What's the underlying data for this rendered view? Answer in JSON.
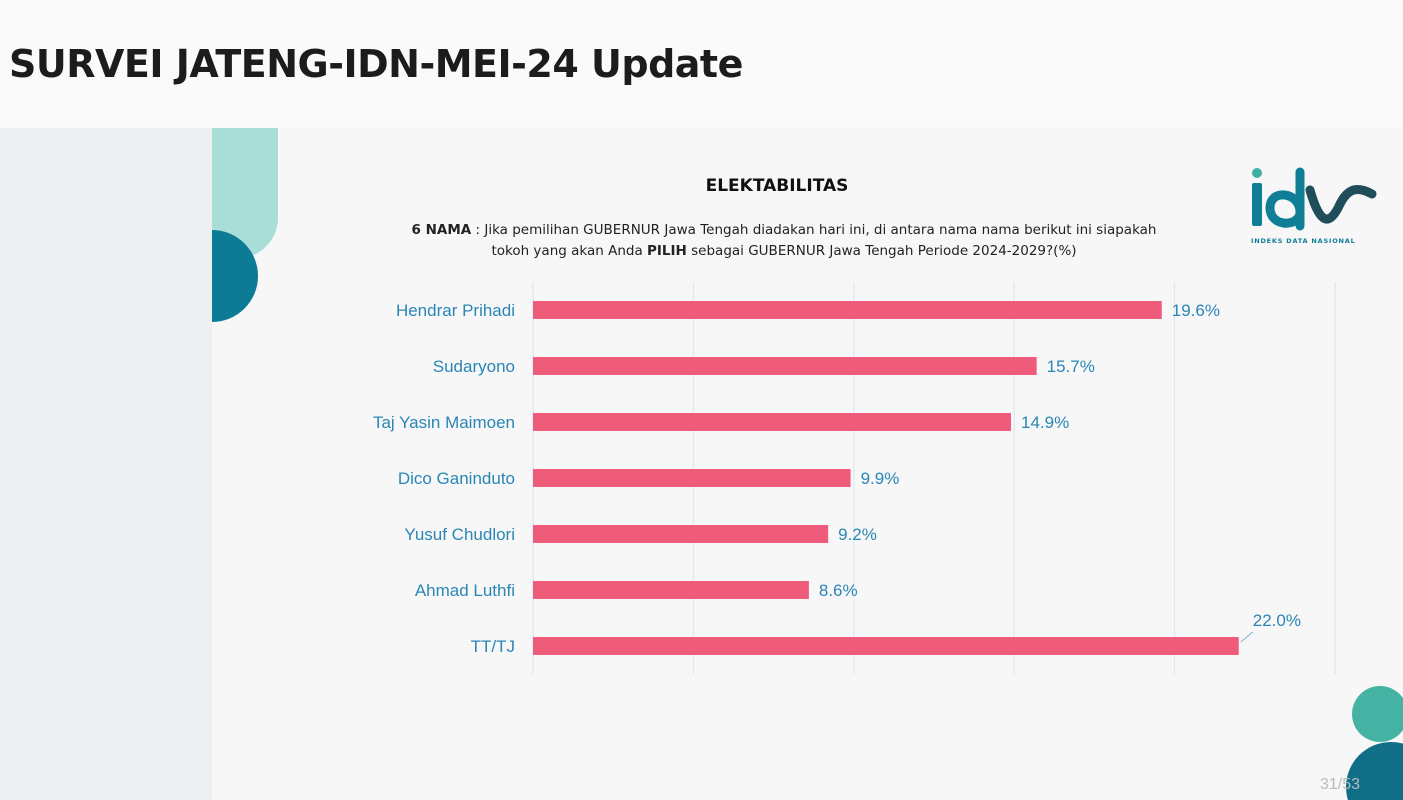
{
  "title": "SURVEI JATENG-IDN-MEI-24 Update",
  "slide": {
    "heading": "ELEKTABILITAS",
    "question": {
      "prefix_bold": "6 NAMA",
      "line1": " : Jika pemilihan GUBERNUR Jawa Tengah diadakan hari ini, di antara nama nama berikut ini siapakah",
      "line2_start": "tokoh yang akan Anda ",
      "line2_bold": "PILIH",
      "line2_end": " sebagai GUBERNUR Jawa Tengah Periode 2024-2029?(%)"
    },
    "logo": {
      "text": "idn",
      "caption": "INDEKS DATA NASIONAL",
      "color": "#0f7f97"
    },
    "page_number": "31/53"
  },
  "chart_data": {
    "type": "bar",
    "orientation": "horizontal",
    "categories": [
      "Hendrar Prihadi",
      "Sudaryono",
      "Taj Yasin Maimoen",
      "Dico Ganinduto",
      "Yusuf Chudlori",
      "Ahmad Luthfi",
      "TT/TJ"
    ],
    "values": [
      19.6,
      15.7,
      14.9,
      9.9,
      9.2,
      8.6,
      22.0
    ],
    "value_labels": [
      "19.6%",
      "15.7%",
      "14.9%",
      "9.9%",
      "9.2%",
      "8.6%",
      "22.0%"
    ],
    "xlim": [
      0,
      25
    ],
    "grid": true,
    "bar_color": "#ef5b7b",
    "label_color": "#2a86b4"
  }
}
